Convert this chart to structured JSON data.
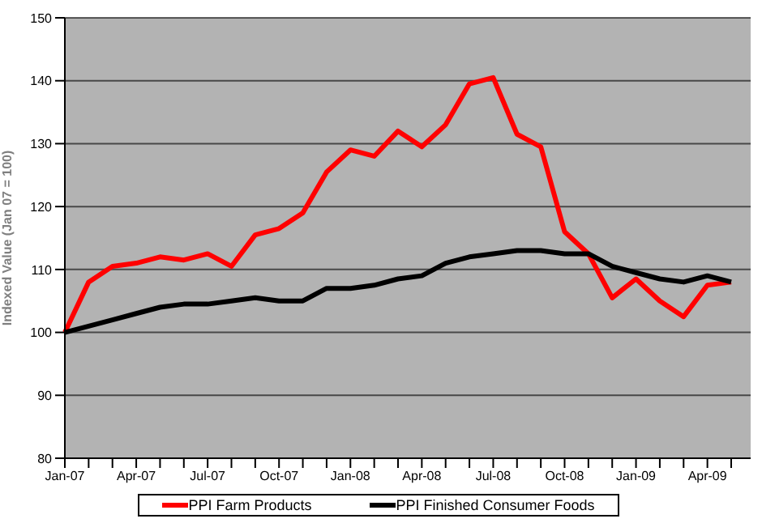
{
  "chart_data": {
    "type": "line",
    "ylabel": "Indexed Value (Jan 07 = 100)",
    "categories": [
      "Jan-07",
      null,
      null,
      "Apr-07",
      null,
      null,
      "Jul-07",
      null,
      null,
      "Oct-07",
      null,
      null,
      "Jan-08",
      null,
      null,
      "Apr-08",
      null,
      null,
      "Jul-08",
      null,
      null,
      "Oct-08",
      null,
      null,
      "Jan-09",
      null,
      null,
      "Apr-09",
      null
    ],
    "series": [
      {
        "name": "PPI Farm Products",
        "color": "#ff0000",
        "values": [
          100,
          108,
          110.5,
          111,
          112,
          111.5,
          112.5,
          110.5,
          115.5,
          116.5,
          119,
          125.5,
          129,
          128,
          132,
          129.5,
          133,
          139.5,
          140.5,
          131.5,
          129.5,
          116,
          112.5,
          105.5,
          108.5,
          105,
          102.5,
          107.5,
          108
        ]
      },
      {
        "name": "PPI Finished Consumer Foods",
        "color": "#000000",
        "values": [
          100,
          101,
          102,
          103,
          104,
          104.5,
          104.5,
          105,
          105.5,
          105,
          105,
          107,
          107,
          107.5,
          108.5,
          109,
          111,
          112,
          112.5,
          113,
          113,
          112.5,
          112.5,
          110.5,
          109.5,
          108.5,
          108,
          109,
          108
        ]
      }
    ],
    "ylim": [
      80,
      150
    ],
    "yticks": [
      80,
      90,
      100,
      110,
      120,
      130,
      140,
      150
    ],
    "grid": "y",
    "legend": "bottom",
    "marker": "none",
    "line_style": "solid"
  }
}
